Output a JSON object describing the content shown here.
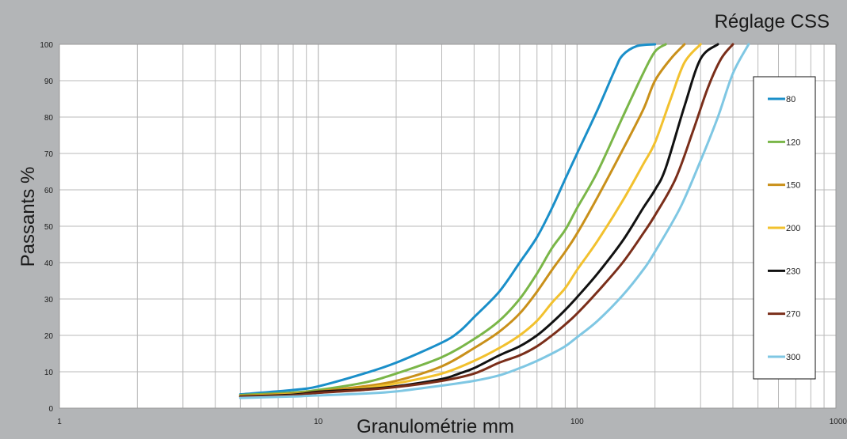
{
  "chart_data": {
    "type": "line",
    "title": "Réglage CSS",
    "xlabel": "Granulométrie mm",
    "ylabel": "Passants %",
    "xscale": "log",
    "xlim": [
      1,
      1000
    ],
    "ylim": [
      0,
      100
    ],
    "xticks": [
      "1",
      "10",
      "100",
      "1000"
    ],
    "yticks": [
      "0",
      "10",
      "20",
      "30",
      "40",
      "50",
      "60",
      "70",
      "80",
      "90",
      "100"
    ],
    "grid": true,
    "legend_position": "right",
    "series": [
      {
        "name": "80",
        "color": "#1a8fc9",
        "points": [
          [
            5,
            3.8
          ],
          [
            8,
            5
          ],
          [
            10,
            6
          ],
          [
            15,
            9.5
          ],
          [
            20,
            12.5
          ],
          [
            30,
            18
          ],
          [
            35,
            21
          ],
          [
            40,
            25
          ],
          [
            50,
            32
          ],
          [
            60,
            40
          ],
          [
            70,
            47
          ],
          [
            80,
            55
          ],
          [
            90,
            63
          ],
          [
            100,
            70
          ],
          [
            120,
            82
          ],
          [
            140,
            93
          ],
          [
            150,
            97
          ],
          [
            170,
            99.5
          ],
          [
            200,
            100
          ]
        ]
      },
      {
        "name": "120",
        "color": "#7ab648",
        "points": [
          [
            5,
            3.6
          ],
          [
            8,
            4.3
          ],
          [
            10,
            5
          ],
          [
            15,
            7
          ],
          [
            20,
            9.5
          ],
          [
            30,
            14
          ],
          [
            40,
            19
          ],
          [
            50,
            24
          ],
          [
            60,
            30
          ],
          [
            70,
            37
          ],
          [
            80,
            44
          ],
          [
            90,
            49
          ],
          [
            100,
            55
          ],
          [
            120,
            65
          ],
          [
            150,
            80
          ],
          [
            180,
            92
          ],
          [
            200,
            98
          ],
          [
            220,
            100
          ]
        ]
      },
      {
        "name": "150",
        "color": "#c9901a",
        "points": [
          [
            5,
            3.4
          ],
          [
            8,
            4
          ],
          [
            10,
            4.6
          ],
          [
            15,
            6
          ],
          [
            20,
            7.5
          ],
          [
            30,
            11.5
          ],
          [
            40,
            16.5
          ],
          [
            50,
            21
          ],
          [
            60,
            26
          ],
          [
            70,
            32
          ],
          [
            80,
            38
          ],
          [
            90,
            43
          ],
          [
            100,
            48
          ],
          [
            120,
            58
          ],
          [
            150,
            71
          ],
          [
            180,
            82
          ],
          [
            200,
            90
          ],
          [
            230,
            96
          ],
          [
            260,
            100
          ]
        ]
      },
      {
        "name": "200",
        "color": "#f2c12e",
        "points": [
          [
            5,
            3.3
          ],
          [
            8,
            3.8
          ],
          [
            10,
            4.3
          ],
          [
            15,
            5.5
          ],
          [
            20,
            6.8
          ],
          [
            30,
            9.5
          ],
          [
            40,
            13
          ],
          [
            50,
            16.5
          ],
          [
            60,
            20
          ],
          [
            70,
            24
          ],
          [
            80,
            29
          ],
          [
            90,
            33
          ],
          [
            100,
            38
          ],
          [
            120,
            46
          ],
          [
            150,
            57
          ],
          [
            180,
            67
          ],
          [
            200,
            73
          ],
          [
            230,
            85
          ],
          [
            260,
            95
          ],
          [
            300,
            100
          ]
        ]
      },
      {
        "name": "230",
        "color": "#111111",
        "points": [
          [
            5,
            3.2
          ],
          [
            8,
            3.7
          ],
          [
            10,
            4.5
          ],
          [
            15,
            5.2
          ],
          [
            20,
            6
          ],
          [
            30,
            8
          ],
          [
            35,
            9.5
          ],
          [
            40,
            11
          ],
          [
            50,
            14.5
          ],
          [
            60,
            17
          ],
          [
            70,
            20
          ],
          [
            80,
            23.5
          ],
          [
            90,
            27
          ],
          [
            100,
            30.5
          ],
          [
            120,
            37
          ],
          [
            150,
            46
          ],
          [
            180,
            55
          ],
          [
            200,
            60
          ],
          [
            220,
            66
          ],
          [
            260,
            83
          ],
          [
            300,
            96
          ],
          [
            350,
            100
          ]
        ]
      },
      {
        "name": "270",
        "color": "#7a2e1a",
        "points": [
          [
            5,
            3.1
          ],
          [
            8,
            3.5
          ],
          [
            10,
            4.2
          ],
          [
            15,
            5
          ],
          [
            20,
            5.8
          ],
          [
            30,
            7.5
          ],
          [
            40,
            9.5
          ],
          [
            50,
            12.5
          ],
          [
            60,
            14.5
          ],
          [
            70,
            17
          ],
          [
            80,
            20
          ],
          [
            90,
            23
          ],
          [
            100,
            26
          ],
          [
            120,
            32
          ],
          [
            150,
            40
          ],
          [
            180,
            48
          ],
          [
            200,
            53
          ],
          [
            240,
            63
          ],
          [
            280,
            76
          ],
          [
            320,
            88
          ],
          [
            360,
            96
          ],
          [
            400,
            100
          ]
        ]
      },
      {
        "name": "300",
        "color": "#7fc7e3",
        "points": [
          [
            5,
            2.8
          ],
          [
            8,
            3.2
          ],
          [
            10,
            3.5
          ],
          [
            15,
            4
          ],
          [
            20,
            4.6
          ],
          [
            30,
            6.2
          ],
          [
            40,
            7.5
          ],
          [
            50,
            9
          ],
          [
            60,
            11
          ],
          [
            70,
            13
          ],
          [
            80,
            15
          ],
          [
            90,
            17
          ],
          [
            100,
            19.5
          ],
          [
            120,
            24
          ],
          [
            150,
            31
          ],
          [
            180,
            38
          ],
          [
            200,
            43
          ],
          [
            250,
            55
          ],
          [
            300,
            68
          ],
          [
            350,
            80
          ],
          [
            400,
            92
          ],
          [
            460,
            100
          ]
        ]
      }
    ]
  }
}
